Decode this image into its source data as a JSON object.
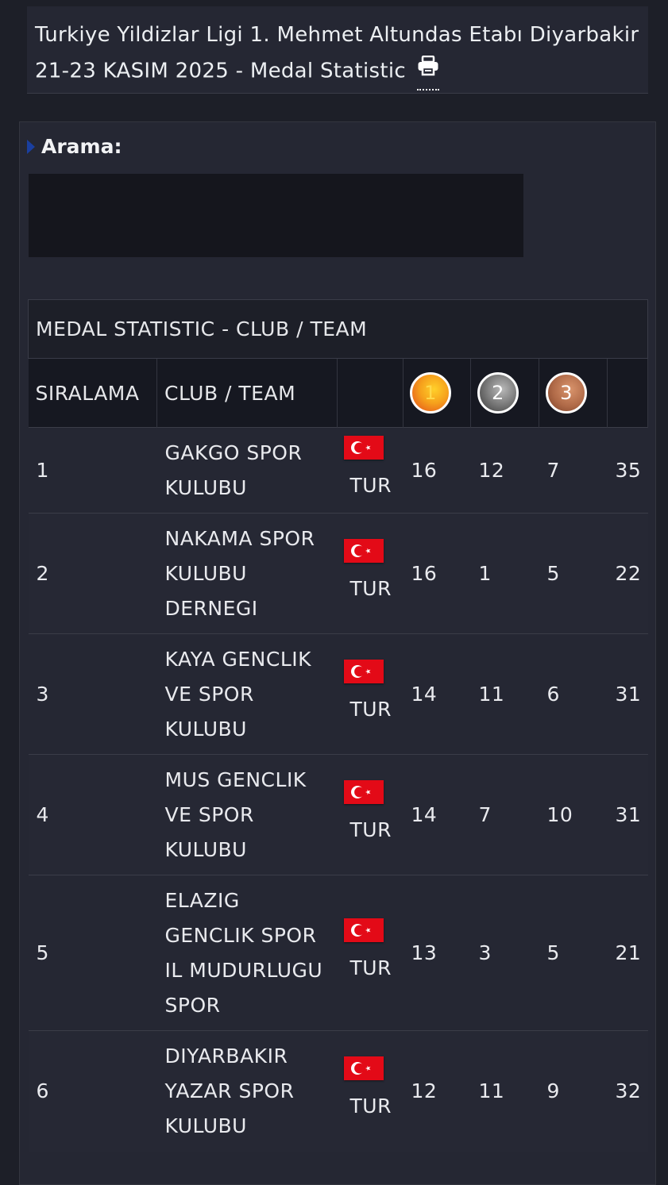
{
  "header": {
    "title": "Turkiye Yildizlar Ligi 1. Mehmet Altundas Etabı Diyarbakir 21-23 KASIM 2025 - Medal Statistic",
    "print_icon": "printer-icon"
  },
  "search": {
    "label": "Arama:",
    "value": ""
  },
  "table": {
    "caption": "MEDAL STATISTIC - CLUB / TEAM",
    "col_rank": "SIRALAMA",
    "col_club": "CLUB / TEAM",
    "medal_gold": "1",
    "medal_silver": "2",
    "medal_bronze": "3",
    "rows": [
      {
        "rank": "1",
        "club_lines": [
          "GAKGO SPOR",
          "KULUBU"
        ],
        "country": "TUR",
        "gold": "16",
        "silver": "12",
        "bronze": "7",
        "total": "35"
      },
      {
        "rank": "2",
        "club_lines": [
          "NAKAMA SPOR",
          "KULUBU",
          "DERNEGI"
        ],
        "country": "TUR",
        "gold": "16",
        "silver": "1",
        "bronze": "5",
        "total": "22"
      },
      {
        "rank": "3",
        "club_lines": [
          "KAYA GENCLIK",
          "VE SPOR",
          "KULUBU"
        ],
        "country": "TUR",
        "gold": "14",
        "silver": "11",
        "bronze": "6",
        "total": "31"
      },
      {
        "rank": "4",
        "club_lines": [
          "MUS GENCLIK",
          "VE SPOR",
          "KULUBU"
        ],
        "country": "TUR",
        "gold": "14",
        "silver": "7",
        "bronze": "10",
        "total": "31"
      },
      {
        "rank": "5",
        "club_lines": [
          "ELAZIG",
          "GENCLIK SPOR",
          "IL MUDURLUGU",
          "SPOR"
        ],
        "country": "TUR",
        "gold": "13",
        "silver": "3",
        "bronze": "5",
        "total": "21"
      },
      {
        "rank": "6",
        "club_lines": [
          "DIYARBAKIR",
          "YAZAR SPOR",
          "KULUBU"
        ],
        "country": "TUR",
        "gold": "12",
        "silver": "11",
        "bronze": "9",
        "total": "32"
      }
    ]
  },
  "colors": {
    "background": "#1d1f28",
    "panel": "#252733",
    "flag_red": "#e30a17",
    "gold": "#f6a11c",
    "silver": "#7a7a7a",
    "bronze": "#b06a48"
  }
}
